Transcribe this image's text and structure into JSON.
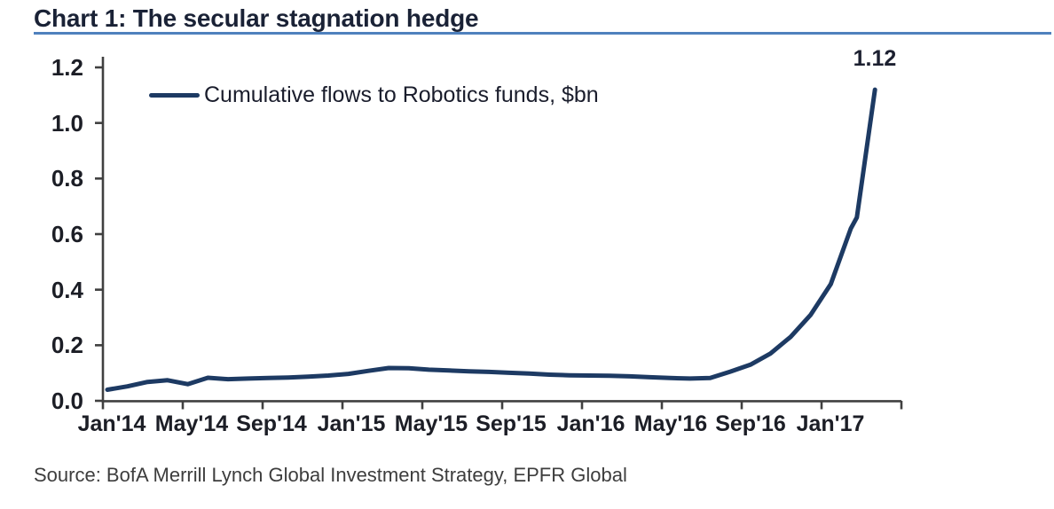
{
  "header": {
    "title": "Chart 1: The secular stagnation hedge"
  },
  "colors": {
    "title_text": "#1a2236",
    "title_underline": "#4f81bd",
    "series_line": "#1d3a63",
    "axis": "#404040",
    "tick_label": "#1c1e26",
    "source_text": "#3d3d3d",
    "background": "#ffffff"
  },
  "chart_data": {
    "type": "line",
    "title": "Chart 1: The secular stagnation hedge",
    "legend_position": "top-left-inside",
    "grid": false,
    "ylim": [
      0,
      1.2
    ],
    "y_ticks": [
      0.0,
      0.2,
      0.4,
      0.6,
      0.8,
      1.0,
      1.2
    ],
    "x_tick_labels": [
      "Jan'14",
      "May'14",
      "Sep'14",
      "Jan'15",
      "May'15",
      "Sep'15",
      "Jan'16",
      "May'16",
      "Sep'16",
      "Jan'17"
    ],
    "x_unit": "months since Jan 2014, tick every 4 months",
    "end_label": "1.12",
    "end_value": 1.12,
    "series": [
      {
        "name": "Cumulative flows to Robotics funds, $bn",
        "color": "#1d3a63",
        "x_months": [
          0,
          1,
          2,
          3,
          4,
          5,
          6,
          7,
          8,
          9,
          10,
          11,
          12,
          13,
          14,
          15,
          16,
          17,
          18,
          19,
          20,
          21,
          22,
          23,
          24,
          25,
          26,
          27,
          28,
          29,
          30,
          31,
          32,
          33,
          34,
          35,
          36,
          37,
          37.3,
          38.2
        ],
        "values": [
          0.04,
          0.052,
          0.068,
          0.074,
          0.06,
          0.083,
          0.078,
          0.08,
          0.082,
          0.084,
          0.087,
          0.091,
          0.097,
          0.108,
          0.118,
          0.117,
          0.112,
          0.109,
          0.106,
          0.104,
          0.101,
          0.098,
          0.094,
          0.092,
          0.091,
          0.09,
          0.088,
          0.085,
          0.082,
          0.08,
          0.082,
          0.105,
          0.13,
          0.17,
          0.23,
          0.31,
          0.42,
          0.62,
          0.66,
          1.12
        ]
      }
    ]
  },
  "footer": {
    "source": "Source: BofA Merrill Lynch Global Investment Strategy, EPFR Global"
  }
}
